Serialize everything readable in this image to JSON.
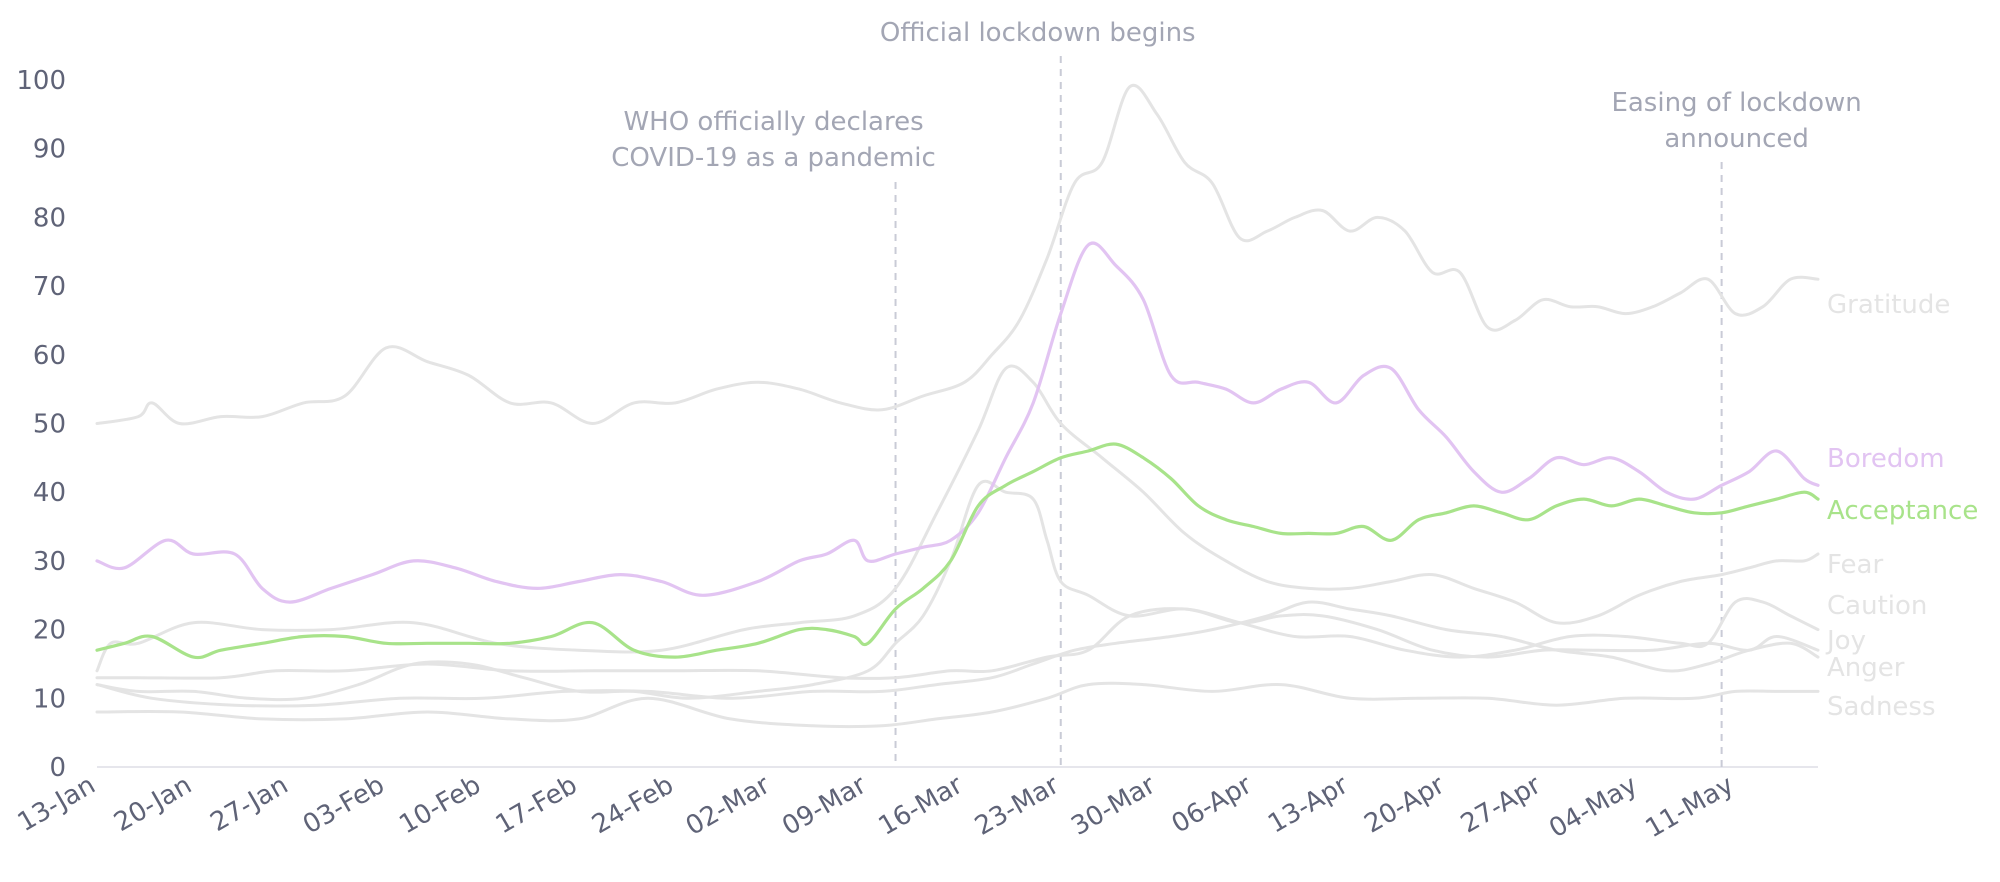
{
  "chart_data": {
    "type": "line",
    "title": "",
    "xlabel": "",
    "ylabel": "",
    "ylim": [
      0,
      100
    ],
    "yticks": [
      0,
      10,
      20,
      30,
      40,
      50,
      60,
      70,
      80,
      90,
      100
    ],
    "x_start": "13-Jan",
    "x_end": "17-May",
    "xticks": [
      "13-Jan",
      "20-Jan",
      "27-Jan",
      "03-Feb",
      "10-Feb",
      "17-Feb",
      "24-Feb",
      "02-Mar",
      "09-Mar",
      "16-Mar",
      "23-Mar",
      "30-Mar",
      "06-Apr",
      "13-Apr",
      "20-Apr",
      "27-Apr",
      "04-May",
      "11-May"
    ],
    "grid": false,
    "legend": "direct labels at right end of lines",
    "series": [
      {
        "name": "Gratitude",
        "color": "#e4e4e4",
        "x": [
          "13-Jan",
          "16-Jan",
          "17-Jan",
          "19-Jan",
          "22-Jan",
          "25-Jan",
          "28-Jan",
          "31-Jan",
          "03-Feb",
          "06-Feb",
          "09-Feb",
          "12-Feb",
          "15-Feb",
          "18-Feb",
          "21-Feb",
          "24-Feb",
          "27-Feb",
          "01-Mar",
          "04-Mar",
          "07-Mar",
          "10-Mar",
          "13-Mar",
          "16-Mar",
          "18-Mar",
          "20-Mar",
          "22-Mar",
          "24-Mar",
          "26-Mar",
          "28-Mar",
          "30-Mar",
          "01-Apr",
          "03-Apr",
          "05-Apr",
          "07-Apr",
          "09-Apr",
          "11-Apr",
          "13-Apr",
          "15-Apr",
          "17-Apr",
          "19-Apr",
          "21-Apr",
          "23-Apr",
          "25-Apr",
          "27-Apr",
          "29-Apr",
          "01-May",
          "03-May",
          "05-May",
          "07-May",
          "09-May",
          "11-May",
          "13-May",
          "15-May",
          "17-May"
        ],
        "values": [
          50,
          51,
          53,
          50,
          51,
          51,
          53,
          54,
          61,
          59,
          57,
          53,
          53,
          50,
          53,
          53,
          55,
          56,
          55,
          53,
          52,
          54,
          56,
          60,
          65,
          74,
          85,
          88,
          99,
          95,
          88,
          85,
          77,
          78,
          80,
          81,
          78,
          80,
          78,
          72,
          72,
          64,
          65,
          68,
          67,
          67,
          66,
          67,
          69,
          71,
          66,
          67,
          71,
          71
        ]
      },
      {
        "name": "Boredom",
        "color": "#e2c4f2",
        "x": [
          "13-Jan",
          "15-Jan",
          "18-Jan",
          "20-Jan",
          "23-Jan",
          "25-Jan",
          "27-Jan",
          "30-Jan",
          "02-Feb",
          "05-Feb",
          "08-Feb",
          "11-Feb",
          "14-Feb",
          "17-Feb",
          "20-Feb",
          "23-Feb",
          "26-Feb",
          "01-Mar",
          "04-Mar",
          "06-Mar",
          "08-Mar",
          "09-Mar",
          "11-Mar",
          "13-Mar",
          "15-Mar",
          "17-Mar",
          "19-Mar",
          "21-Mar",
          "23-Mar",
          "25-Mar",
          "27-Mar",
          "29-Mar",
          "31-Mar",
          "02-Apr",
          "04-Apr",
          "06-Apr",
          "08-Apr",
          "10-Apr",
          "12-Apr",
          "14-Apr",
          "16-Apr",
          "18-Apr",
          "20-Apr",
          "22-Apr",
          "24-Apr",
          "26-Apr",
          "28-Apr",
          "30-Apr",
          "02-May",
          "04-May",
          "06-May",
          "08-May",
          "10-May",
          "12-May",
          "14-May",
          "16-May",
          "17-May"
        ],
        "values": [
          30,
          29,
          33,
          31,
          31,
          26,
          24,
          26,
          28,
          30,
          29,
          27,
          26,
          27,
          28,
          27,
          25,
          27,
          30,
          31,
          33,
          30,
          31,
          32,
          33,
          37,
          45,
          53,
          66,
          76,
          73,
          68,
          57,
          56,
          55,
          53,
          55,
          56,
          53,
          57,
          58,
          52,
          48,
          43,
          40,
          42,
          45,
          44,
          45,
          43,
          40,
          39,
          41,
          43,
          46,
          42,
          41
        ]
      },
      {
        "name": "Acceptance",
        "color": "#a8e38a",
        "x": [
          "13-Jan",
          "15-Jan",
          "17-Jan",
          "20-Jan",
          "22-Jan",
          "25-Jan",
          "28-Jan",
          "31-Jan",
          "03-Feb",
          "06-Feb",
          "09-Feb",
          "12-Feb",
          "15-Feb",
          "18-Feb",
          "21-Feb",
          "24-Feb",
          "27-Feb",
          "01-Mar",
          "04-Mar",
          "06-Mar",
          "08-Mar",
          "09-Mar",
          "11-Mar",
          "13-Mar",
          "15-Mar",
          "17-Mar",
          "19-Mar",
          "21-Mar",
          "23-Mar",
          "25-Mar",
          "27-Mar",
          "29-Mar",
          "31-Mar",
          "02-Apr",
          "04-Apr",
          "06-Apr",
          "08-Apr",
          "10-Apr",
          "12-Apr",
          "14-Apr",
          "16-Apr",
          "18-Apr",
          "20-Apr",
          "22-Apr",
          "24-Apr",
          "26-Apr",
          "28-Apr",
          "30-Apr",
          "02-May",
          "04-May",
          "06-May",
          "08-May",
          "10-May",
          "12-May",
          "14-May",
          "16-May",
          "17-May"
        ],
        "values": [
          17,
          18,
          19,
          16,
          17,
          18,
          19,
          19,
          18,
          18,
          18,
          18,
          19,
          21,
          17,
          16,
          17,
          18,
          20,
          20,
          19,
          18,
          23,
          26,
          30,
          38,
          41,
          43,
          45,
          46,
          47,
          45,
          42,
          38,
          36,
          35,
          34,
          34,
          34,
          35,
          33,
          36,
          37,
          38,
          37,
          36,
          38,
          39,
          38,
          39,
          38,
          37,
          37,
          38,
          39,
          40,
          39
        ]
      },
      {
        "name": "Fear",
        "color": "#e4e4e4",
        "x": [
          "13-Jan",
          "14-Jan",
          "16-Jan",
          "20-Jan",
          "25-Jan",
          "30-Jan",
          "05-Feb",
          "11-Feb",
          "17-Feb",
          "23-Feb",
          "29-Feb",
          "04-Mar",
          "08-Mar",
          "11-Mar",
          "14-Mar",
          "17-Mar",
          "19-Mar",
          "21-Mar",
          "23-Mar",
          "26-Mar",
          "29-Mar",
          "01-Apr",
          "04-Apr",
          "07-Apr",
          "10-Apr",
          "13-Apr",
          "16-Apr",
          "19-Apr",
          "22-Apr",
          "25-Apr",
          "28-Apr",
          "01-May",
          "04-May",
          "07-May",
          "10-May",
          "12-May",
          "14-May",
          "16-May",
          "17-May"
        ],
        "values": [
          14,
          18,
          18,
          21,
          20,
          20,
          21,
          18,
          17,
          17,
          20,
          21,
          22,
          26,
          37,
          49,
          58,
          56,
          50,
          45,
          40,
          34,
          30,
          27,
          26,
          26,
          27,
          28,
          26,
          24,
          21,
          22,
          25,
          27,
          28,
          29,
          30,
          30,
          31
        ]
      },
      {
        "name": "Caution",
        "color": "#e4e4e4",
        "x": [
          "13-Jan",
          "16-Jan",
          "20-Jan",
          "24-Jan",
          "28-Jan",
          "01-Feb",
          "05-Feb",
          "09-Feb",
          "13-Feb",
          "17-Feb",
          "21-Feb",
          "25-Feb",
          "01-Mar",
          "05-Mar",
          "09-Mar",
          "11-Mar",
          "13-Mar",
          "15-Mar",
          "17-Mar",
          "19-Mar",
          "21-Mar",
          "22-Mar",
          "23-Mar",
          "25-Mar",
          "28-Mar",
          "01-Apr",
          "05-Apr",
          "09-Apr",
          "13-Apr",
          "17-Apr",
          "21-Apr",
          "25-Apr",
          "29-Apr",
          "03-May",
          "07-May",
          "09-May",
          "11-May",
          "13-May",
          "15-May",
          "17-May"
        ],
        "values": [
          12,
          11,
          11,
          10,
          10,
          12,
          15,
          15,
          13,
          11,
          11,
          10,
          11,
          12,
          14,
          18,
          22,
          30,
          41,
          40,
          39,
          33,
          27,
          25,
          22,
          23,
          21,
          19,
          19,
          17,
          16,
          17,
          19,
          19,
          18,
          18,
          24,
          24,
          22,
          20
        ]
      },
      {
        "name": "Joy",
        "color": "#e4e4e4",
        "x": [
          "13-Jan",
          "16-Jan",
          "22-Jan",
          "26-Jan",
          "31-Jan",
          "06-Feb",
          "12-Feb",
          "18-Feb",
          "24-Feb",
          "01-Mar",
          "07-Mar",
          "11-Mar",
          "15-Mar",
          "18-Mar",
          "22-Mar",
          "25-Mar",
          "28-Mar",
          "01-Apr",
          "05-Apr",
          "08-Apr",
          "11-Apr",
          "15-Apr",
          "19-Apr",
          "23-Apr",
          "27-Apr",
          "01-May",
          "05-May",
          "09-May",
          "12-May",
          "14-May",
          "17-May"
        ],
        "values": [
          13,
          13,
          13,
          14,
          14,
          15,
          14,
          14,
          14,
          14,
          13,
          13,
          14,
          14,
          16,
          17,
          22,
          23,
          21,
          22,
          22,
          20,
          17,
          16,
          17,
          17,
          17,
          18,
          17,
          19,
          17
        ]
      },
      {
        "name": "Anger",
        "color": "#e4e4e4",
        "x": [
          "13-Jan",
          "17-Jan",
          "23-Jan",
          "29-Jan",
          "04-Feb",
          "10-Feb",
          "16-Feb",
          "22-Feb",
          "28-Feb",
          "05-Mar",
          "10-Mar",
          "14-Mar",
          "18-Mar",
          "21-Mar",
          "24-Mar",
          "27-Mar",
          "31-Mar",
          "03-Apr",
          "07-Apr",
          "10-Apr",
          "13-Apr",
          "16-Apr",
          "20-Apr",
          "24-Apr",
          "28-Apr",
          "02-May",
          "06-May",
          "09-May",
          "12-May",
          "15-May",
          "17-May"
        ],
        "values": [
          12,
          10,
          9,
          9,
          10,
          10,
          11,
          11,
          10,
          11,
          11,
          12,
          13,
          15,
          17,
          18,
          19,
          20,
          22,
          24,
          23,
          22,
          20,
          19,
          17,
          16,
          14,
          15,
          17,
          18,
          16
        ]
      },
      {
        "name": "Sadness",
        "color": "#e4e4e4",
        "x": [
          "13-Jan",
          "19-Jan",
          "25-Jan",
          "31-Jan",
          "06-Feb",
          "12-Feb",
          "17-Feb",
          "22-Feb",
          "28-Feb",
          "05-Mar",
          "10-Mar",
          "14-Mar",
          "18-Mar",
          "22-Mar",
          "25-Mar",
          "29-Mar",
          "03-Apr",
          "08-Apr",
          "13-Apr",
          "18-Apr",
          "23-Apr",
          "28-Apr",
          "03-May",
          "08-May",
          "11-May",
          "14-May",
          "17-May"
        ],
        "values": [
          8,
          8,
          7,
          7,
          8,
          7,
          7,
          10,
          7,
          6,
          6,
          7,
          8,
          10,
          12,
          12,
          11,
          12,
          10,
          10,
          10,
          9,
          10,
          10,
          11,
          11,
          11
        ]
      }
    ],
    "annotations": [
      {
        "x": "11-Mar",
        "lines": [
          "WHO officially declares",
          "COVID-19 as a pandemic"
        ]
      },
      {
        "x": "23-Mar",
        "lines": [
          "Official lockdown begins"
        ]
      },
      {
        "x": "10-May",
        "lines": [
          "Easing of lockdown",
          "announced"
        ]
      }
    ]
  }
}
